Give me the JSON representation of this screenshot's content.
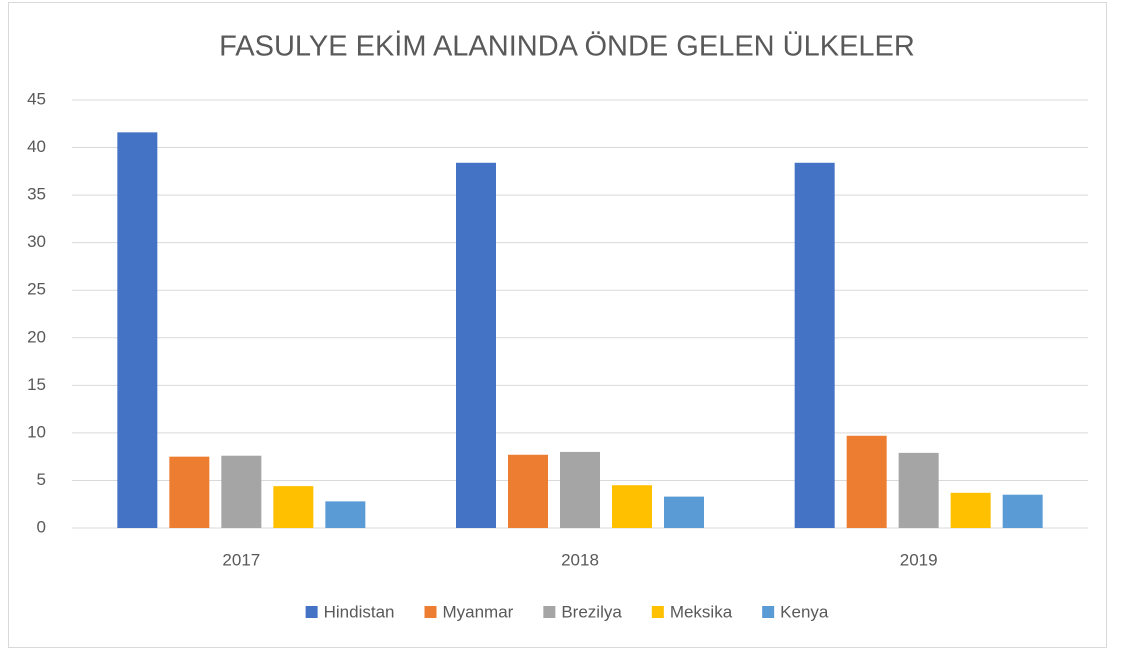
{
  "chart_data": {
    "type": "bar",
    "title": "FASULYE EKİM ALANINDA ÖNDE GELEN ÜLKELER",
    "categories": [
      "2017",
      "2018",
      "2019"
    ],
    "series": [
      {
        "name": "Hindistan",
        "color": "#4472c4",
        "values": [
          41.6,
          38.4,
          38.4
        ]
      },
      {
        "name": "Myanmar",
        "color": "#ed7d31",
        "values": [
          7.5,
          7.7,
          9.7
        ]
      },
      {
        "name": "Brezilya",
        "color": "#a5a5a5",
        "values": [
          7.6,
          8.0,
          7.9
        ]
      },
      {
        "name": "Meksika",
        "color": "#ffc000",
        "values": [
          4.4,
          4.5,
          3.7
        ]
      },
      {
        "name": "Kenya",
        "color": "#5b9bd5",
        "values": [
          2.8,
          3.3,
          3.5
        ]
      }
    ],
    "ylim": [
      0,
      45
    ],
    "yticks": [
      0,
      5,
      10,
      15,
      20,
      25,
      30,
      35,
      40,
      45
    ],
    "grid": true,
    "legend": "bottom"
  }
}
